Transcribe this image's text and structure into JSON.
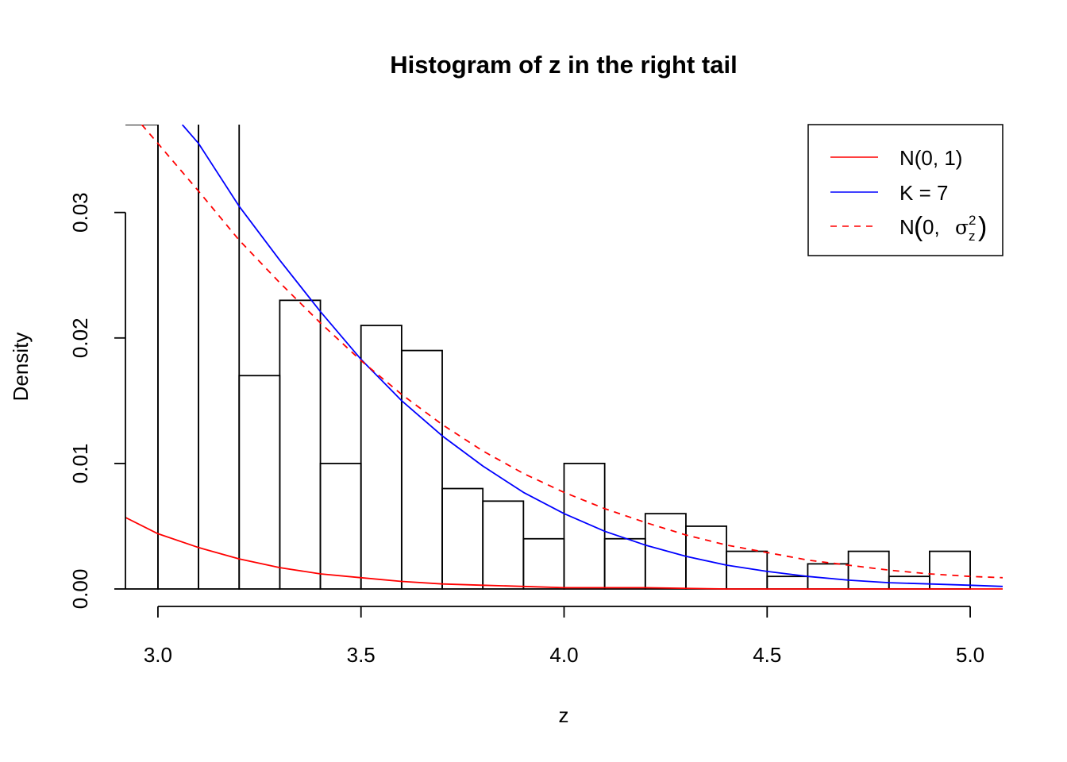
{
  "chart_data": {
    "type": "histogram",
    "title": "Histogram of z in the right tail",
    "xlabel": "z",
    "ylabel": "Density",
    "xlim": [
      2.92,
      5.08
    ],
    "ylim": [
      0.0,
      0.037
    ],
    "x_ticks": [
      3.0,
      3.5,
      4.0,
      4.5,
      5.0
    ],
    "x_tick_labels": [
      "3.0",
      "3.5",
      "4.0",
      "4.5",
      "5.0"
    ],
    "y_ticks": [
      0.0,
      0.01,
      0.02,
      0.03
    ],
    "y_tick_labels": [
      "0.00",
      "0.01",
      "0.02",
      "0.03"
    ],
    "grid": false,
    "legend_position": "top-right",
    "bins": [
      {
        "x0": 2.9,
        "x1": 3.0,
        "density": 0.037
      },
      {
        "x0": 3.0,
        "x1": 3.1,
        "density": 0.045
      },
      {
        "x0": 3.1,
        "x1": 3.2,
        "density": 0.041
      },
      {
        "x0": 3.2,
        "x1": 3.3,
        "density": 0.017
      },
      {
        "x0": 3.3,
        "x1": 3.4,
        "density": 0.023
      },
      {
        "x0": 3.4,
        "x1": 3.5,
        "density": 0.01
      },
      {
        "x0": 3.5,
        "x1": 3.6,
        "density": 0.021
      },
      {
        "x0": 3.6,
        "x1": 3.7,
        "density": 0.019
      },
      {
        "x0": 3.7,
        "x1": 3.8,
        "density": 0.008
      },
      {
        "x0": 3.8,
        "x1": 3.9,
        "density": 0.007
      },
      {
        "x0": 3.9,
        "x1": 4.0,
        "density": 0.004
      },
      {
        "x0": 4.0,
        "x1": 4.1,
        "density": 0.01
      },
      {
        "x0": 4.1,
        "x1": 4.2,
        "density": 0.004
      },
      {
        "x0": 4.2,
        "x1": 4.3,
        "density": 0.006
      },
      {
        "x0": 4.3,
        "x1": 4.4,
        "density": 0.005
      },
      {
        "x0": 4.4,
        "x1": 4.5,
        "density": 0.003
      },
      {
        "x0": 4.5,
        "x1": 4.6,
        "density": 0.001
      },
      {
        "x0": 4.6,
        "x1": 4.7,
        "density": 0.002
      },
      {
        "x0": 4.7,
        "x1": 4.8,
        "density": 0.003
      },
      {
        "x0": 4.8,
        "x1": 4.9,
        "density": 0.001
      },
      {
        "x0": 4.9,
        "x1": 5.0,
        "density": 0.003
      }
    ],
    "series": [
      {
        "name": "N(0, 1)",
        "type": "line",
        "color": "#ff0000",
        "dash": "solid",
        "x": [
          2.92,
          3.0,
          3.1,
          3.2,
          3.3,
          3.4,
          3.5,
          3.6,
          3.7,
          3.8,
          3.9,
          4.0,
          4.2,
          4.4,
          4.6,
          4.8,
          5.08
        ],
        "y": [
          0.0057,
          0.0044,
          0.0033,
          0.0024,
          0.0017,
          0.0012,
          0.0009,
          0.0006,
          0.0004,
          0.0003,
          0.0002,
          0.0001,
          0.0001,
          0.0,
          0.0,
          0.0,
          0.0
        ]
      },
      {
        "name": "K = 7",
        "type": "line",
        "color": "#0000ff",
        "dash": "solid",
        "x": [
          3.06,
          3.1,
          3.2,
          3.3,
          3.4,
          3.5,
          3.6,
          3.7,
          3.8,
          3.9,
          4.0,
          4.1,
          4.2,
          4.3,
          4.4,
          4.5,
          4.6,
          4.7,
          4.8,
          4.9,
          5.0,
          5.08
        ],
        "y": [
          0.037,
          0.0355,
          0.0305,
          0.0262,
          0.0221,
          0.0183,
          0.015,
          0.0122,
          0.0098,
          0.0077,
          0.006,
          0.0046,
          0.0035,
          0.0026,
          0.0019,
          0.0014,
          0.001,
          0.0007,
          0.0005,
          0.0004,
          0.0003,
          0.0002
        ]
      },
      {
        "name": "N(0, σz²)",
        "type": "line",
        "color": "#ff0000",
        "dash": "dashed",
        "x": [
          2.96,
          3.0,
          3.1,
          3.2,
          3.3,
          3.4,
          3.5,
          3.6,
          3.7,
          3.8,
          3.9,
          4.0,
          4.1,
          4.2,
          4.3,
          4.4,
          4.5,
          4.6,
          4.7,
          4.8,
          4.9,
          5.0,
          5.08
        ],
        "y": [
          0.037,
          0.0355,
          0.0317,
          0.0278,
          0.0244,
          0.0212,
          0.0182,
          0.0155,
          0.0131,
          0.011,
          0.0092,
          0.0077,
          0.0064,
          0.0053,
          0.0043,
          0.0035,
          0.0029,
          0.0023,
          0.0019,
          0.0015,
          0.0012,
          0.001,
          0.0009
        ]
      }
    ],
    "legend": {
      "entries": [
        {
          "label": "N(0, 1)",
          "color": "#ff0000",
          "dash": "solid"
        },
        {
          "label": "K = 7",
          "color": "#0000ff",
          "dash": "solid"
        },
        {
          "label_main": "N",
          "label_open": "(",
          "label_zero": "0,",
          "label_sigma": "σ",
          "label_sup": "2",
          "label_sub": "z",
          "label_close": ")",
          "color": "#ff0000",
          "dash": "dashed"
        }
      ]
    }
  }
}
